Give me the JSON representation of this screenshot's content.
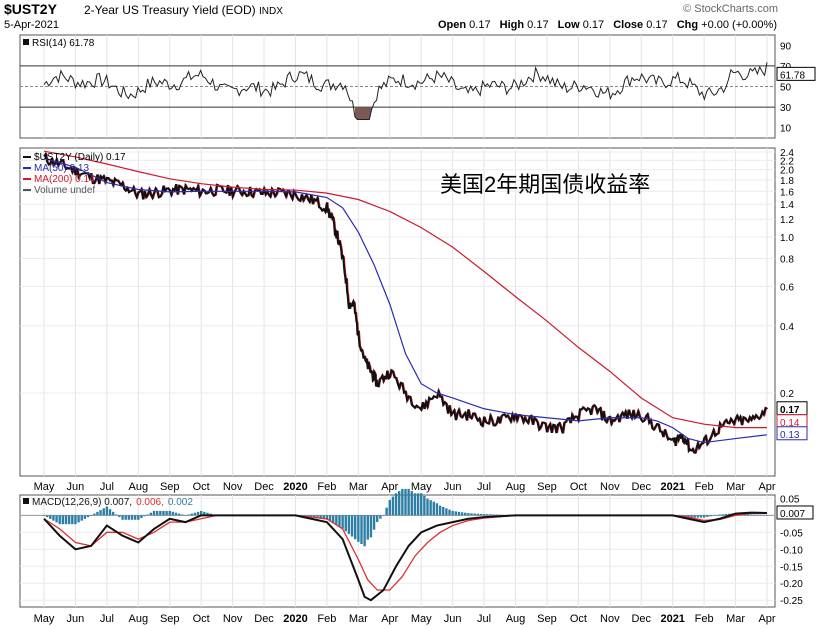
{
  "header": {
    "ticker": "$UST2Y",
    "description": "2-Year US Treasury Yield (EOD)",
    "exchange": "INDX",
    "date": "5-Apr-2021",
    "brand": "© StockCharts.com",
    "ohlc": [
      {
        "label": "Open",
        "value": "0.17"
      },
      {
        "label": "High",
        "value": "0.17"
      },
      {
        "label": "Low",
        "value": "0.17"
      },
      {
        "label": "Close",
        "value": "0.17"
      },
      {
        "label": "Chg",
        "value": "+0.00 (+0.00%)"
      }
    ]
  },
  "colors": {
    "price": "#111111",
    "ma50": "#2b2bb0",
    "ma200": "#cc1a2e",
    "rsi_fill": "#7b5a55",
    "macd_hist": "#2d7ea5",
    "signal": "#e03030"
  },
  "chart_data": [
    {
      "type": "line",
      "panel": "RSI",
      "legend": "RSI(14) 61.78",
      "last_label": "61.78",
      "yticks": [
        90,
        70,
        50,
        30,
        10
      ],
      "ylim": [
        0,
        100
      ],
      "reference_lines": [
        70,
        50,
        30
      ]
    },
    {
      "type": "line",
      "panel": "price",
      "title": "美国2年期国债收益率",
      "scale": "log",
      "legend": [
        {
          "label": "$UST2Y (Daily) 0.17",
          "color": "#111111"
        },
        {
          "label": "MA(50) 0.13",
          "color": "#2b2bb0"
        },
        {
          "label": "MA(200) 0.14",
          "color": "#cc1a2e"
        },
        {
          "label": "Volume undef",
          "color": "#555555"
        }
      ],
      "yticks": [
        "2.4",
        "2.2",
        "2.0",
        "1.8",
        "1.6",
        "1.4",
        "1.2",
        "1.0",
        "0.8",
        "0.6",
        "0.4",
        "0.2"
      ],
      "ylim": [
        0.085,
        2.5
      ],
      "last_values": {
        "price": "0.17",
        "ma200": "0.14",
        "ma50": "0.13"
      },
      "x_months": [
        "May",
        "Jun",
        "Jul",
        "Aug",
        "Sep",
        "Oct",
        "Nov",
        "Dec",
        "2020",
        "Feb",
        "Mar",
        "Apr",
        "May",
        "Jun",
        "Jul",
        "Aug",
        "Sep",
        "Oct",
        "Nov",
        "Dec",
        "2021",
        "Feb",
        "Mar",
        "Apr"
      ],
      "series": [
        {
          "name": "$UST2Y",
          "x": [
            0,
            0.5,
            1,
            1.5,
            2,
            2.5,
            3,
            3.5,
            4,
            4.5,
            5,
            5.5,
            6,
            6.5,
            7,
            7.5,
            8,
            8.5,
            9,
            9.25,
            9.5,
            9.7,
            9.85,
            10,
            10.2,
            10.4,
            10.6,
            11,
            11.5,
            12,
            12.5,
            13,
            13.5,
            14,
            14.5,
            15,
            15.5,
            16,
            16.5,
            17,
            17.5,
            18,
            18.5,
            19,
            19.5,
            20,
            20.3,
            20.6,
            21,
            21.5,
            22,
            22.5,
            23
          ],
          "values": [
            2.25,
            2.12,
            1.98,
            1.85,
            1.78,
            1.7,
            1.55,
            1.58,
            1.62,
            1.63,
            1.6,
            1.62,
            1.61,
            1.6,
            1.57,
            1.58,
            1.55,
            1.47,
            1.35,
            1.1,
            0.8,
            0.5,
            0.5,
            0.36,
            0.28,
            0.25,
            0.22,
            0.25,
            0.2,
            0.17,
            0.2,
            0.16,
            0.16,
            0.15,
            0.15,
            0.16,
            0.15,
            0.14,
            0.14,
            0.16,
            0.17,
            0.15,
            0.16,
            0.16,
            0.14,
            0.12,
            0.13,
            0.11,
            0.12,
            0.14,
            0.15,
            0.15,
            0.17
          ]
        },
        {
          "name": "MA(50)",
          "x": [
            0,
            1,
            2,
            3,
            4,
            5,
            6,
            7,
            8,
            9,
            9.5,
            10,
            10.5,
            11,
            11.5,
            12,
            12.5,
            13,
            14,
            15,
            16,
            17,
            18,
            19,
            19.5,
            20,
            20.5,
            21,
            22,
            23
          ],
          "values": [
            2.25,
            2.05,
            1.75,
            1.63,
            1.59,
            1.6,
            1.6,
            1.6,
            1.59,
            1.5,
            1.35,
            1.05,
            0.75,
            0.5,
            0.3,
            0.22,
            0.2,
            0.19,
            0.17,
            0.16,
            0.155,
            0.15,
            0.155,
            0.155,
            0.15,
            0.14,
            0.125,
            0.12,
            0.125,
            0.13
          ]
        },
        {
          "name": "MA(200)",
          "x": [
            0,
            1,
            2,
            3,
            4,
            5,
            6,
            7,
            8,
            9,
            10,
            11,
            12,
            13,
            14,
            15,
            16,
            17,
            18,
            19,
            20,
            21,
            22,
            23
          ],
          "values": [
            2.42,
            2.28,
            2.12,
            1.96,
            1.82,
            1.73,
            1.67,
            1.63,
            1.62,
            1.57,
            1.47,
            1.3,
            1.1,
            0.9,
            0.7,
            0.54,
            0.42,
            0.32,
            0.25,
            0.19,
            0.155,
            0.145,
            0.14,
            0.14
          ]
        }
      ]
    },
    {
      "type": "line",
      "panel": "MACD",
      "legend": [
        {
          "label": "MACD(12,26,9) 0.007,",
          "color": "#111111"
        },
        {
          "label": "0.006,",
          "color": "#e03030"
        },
        {
          "label": "0.002",
          "color": "#2d7ea5"
        }
      ],
      "last_label": "0.007",
      "yticks": [
        "0.05",
        "0.00",
        "-0.05",
        "-0.10",
        "-0.15",
        "-0.20",
        "-0.25"
      ],
      "ylim": [
        -0.27,
        0.06
      ],
      "series": [
        {
          "name": "MACD",
          "x": [
            0,
            0.5,
            1,
            1.5,
            2,
            2.5,
            3,
            3.5,
            4,
            4.5,
            5,
            5.5,
            6,
            6.5,
            7,
            7.5,
            8,
            8.5,
            9,
            9.5,
            10,
            10.2,
            10.4,
            10.8,
            11.2,
            11.6,
            12,
            12.5,
            13,
            13.5,
            14,
            15,
            16,
            17,
            18,
            19,
            20,
            20.5,
            21,
            21.5,
            22,
            22.5,
            23
          ],
          "values": [
            -0.01,
            -0.06,
            -0.1,
            -0.09,
            -0.03,
            -0.06,
            -0.08,
            -0.04,
            -0.01,
            -0.02,
            0.0,
            0.0,
            0.0,
            0.0,
            0.0,
            0.0,
            0.0,
            -0.01,
            -0.02,
            -0.07,
            -0.19,
            -0.24,
            -0.25,
            -0.22,
            -0.15,
            -0.09,
            -0.05,
            -0.03,
            -0.02,
            -0.01,
            -0.005,
            0.0,
            0.0,
            0.0,
            0.0,
            0.0,
            0.0,
            -0.01,
            -0.02,
            -0.01,
            0.005,
            0.008,
            0.007
          ]
        },
        {
          "name": "Signal",
          "x": [
            0,
            0.5,
            1,
            1.5,
            2,
            2.5,
            3,
            3.5,
            4,
            4.5,
            5,
            5.5,
            6,
            6.5,
            7,
            7.5,
            8,
            8.5,
            9,
            9.5,
            10,
            10.3,
            10.6,
            11,
            11.4,
            11.8,
            12.2,
            12.6,
            13,
            13.5,
            14,
            15,
            16,
            17,
            18,
            19,
            20,
            20.5,
            21,
            21.5,
            22,
            22.5,
            23
          ],
          "values": [
            -0.01,
            -0.04,
            -0.08,
            -0.09,
            -0.05,
            -0.05,
            -0.07,
            -0.05,
            -0.02,
            -0.02,
            -0.01,
            0.0,
            0.0,
            0.0,
            0.0,
            0.0,
            0.0,
            -0.005,
            -0.01,
            -0.04,
            -0.13,
            -0.19,
            -0.22,
            -0.22,
            -0.18,
            -0.12,
            -0.08,
            -0.05,
            -0.03,
            -0.015,
            -0.008,
            0.0,
            0.0,
            0.0,
            0.0,
            0.0,
            0.0,
            -0.005,
            -0.015,
            -0.012,
            0.0,
            0.006,
            0.006
          ]
        }
      ]
    }
  ]
}
